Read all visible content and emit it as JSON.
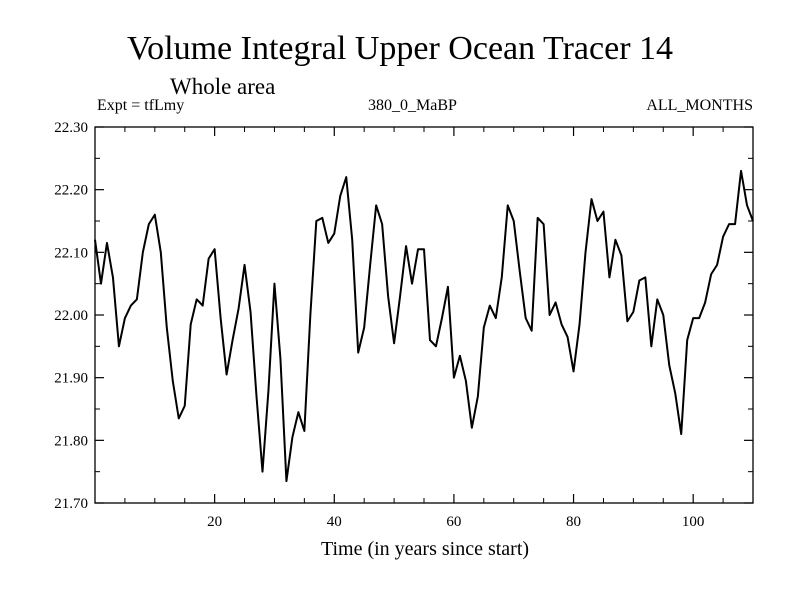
{
  "header": {
    "title": "Volume Integral Upper Ocean Tracer 14",
    "subtitle": "Whole area",
    "expt_label": "Expt = tfLmy",
    "period_label": "380_0_MaBP",
    "months_label": "ALL_MONTHS"
  },
  "chart_data": {
    "type": "line",
    "title": "Volume Integral Upper Ocean Tracer 14",
    "subtitle": "Whole area",
    "xlabel": "Time (in years since start)",
    "ylabel": "",
    "xlim": [
      0,
      110
    ],
    "ylim": [
      21.7,
      22.3
    ],
    "xticks": [
      20,
      40,
      60,
      80,
      100
    ],
    "yticks": [
      21.7,
      21.8,
      21.9,
      22.0,
      22.1,
      22.2,
      22.3
    ],
    "ytick_labels": [
      "21.70",
      "21.80",
      "21.90",
      "22.00",
      "22.10",
      "22.20",
      "22.30"
    ],
    "grid": false,
    "series": [
      {
        "name": "tfLmy",
        "x": [
          0,
          1,
          2,
          3,
          4,
          5,
          6,
          7,
          8,
          9,
          10,
          11,
          12,
          13,
          14,
          15,
          16,
          17,
          18,
          19,
          20,
          21,
          22,
          23,
          24,
          25,
          26,
          27,
          28,
          29,
          30,
          31,
          32,
          33,
          34,
          35,
          36,
          37,
          38,
          39,
          40,
          41,
          42,
          43,
          44,
          45,
          46,
          47,
          48,
          49,
          50,
          51,
          52,
          53,
          54,
          55,
          56,
          57,
          58,
          59,
          60,
          61,
          62,
          63,
          64,
          65,
          66,
          67,
          68,
          69,
          70,
          71,
          72,
          73,
          74,
          75,
          76,
          77,
          78,
          79,
          80,
          81,
          82,
          83,
          84,
          85,
          86,
          87,
          88,
          89,
          90,
          91,
          92,
          93,
          94,
          95,
          96,
          97,
          98,
          99,
          100,
          101,
          102,
          103,
          104,
          105,
          106,
          107,
          108,
          109,
          110
        ],
        "values": [
          22.12,
          22.05,
          22.115,
          22.06,
          21.95,
          21.995,
          22.015,
          22.025,
          22.1,
          22.145,
          22.16,
          22.1,
          21.98,
          21.895,
          21.835,
          21.855,
          21.985,
          22.025,
          22.015,
          22.09,
          22.105,
          21.995,
          21.905,
          21.96,
          22.01,
          22.08,
          22.005,
          21.87,
          21.75,
          21.88,
          22.05,
          21.93,
          21.735,
          21.805,
          21.845,
          21.815,
          22.0,
          22.15,
          22.155,
          22.115,
          22.13,
          22.19,
          22.22,
          22.12,
          21.94,
          21.98,
          22.08,
          22.175,
          22.145,
          22.03,
          21.955,
          22.03,
          22.11,
          22.05,
          22.105,
          22.105,
          21.96,
          21.95,
          21.995,
          22.045,
          21.9,
          21.935,
          21.895,
          21.82,
          21.87,
          21.98,
          22.015,
          21.995,
          22.06,
          22.175,
          22.15,
          22.07,
          21.995,
          21.975,
          22.155,
          22.145,
          22.0,
          22.02,
          21.985,
          21.965,
          21.91,
          21.985,
          22.1,
          22.185,
          22.15,
          22.165,
          22.06,
          22.12,
          22.095,
          21.99,
          22.005,
          22.055,
          22.06,
          21.95,
          22.025,
          22.0,
          21.92,
          21.875,
          21.81,
          21.96,
          21.995,
          21.995,
          22.02,
          22.065,
          22.08,
          22.125,
          22.145,
          22.145,
          22.23,
          22.175,
          22.15
        ]
      }
    ]
  }
}
